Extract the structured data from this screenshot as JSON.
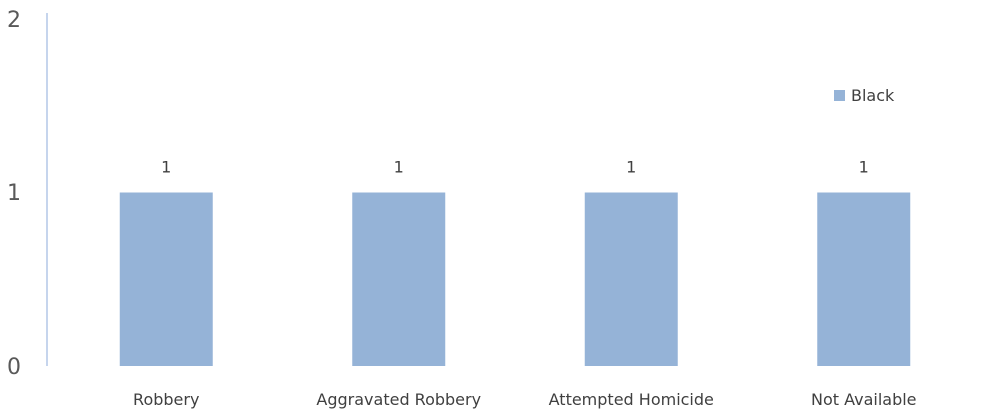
{
  "chart_data": {
    "type": "bar",
    "categories": [
      "Robbery",
      "Aggravated Robbery",
      "Attempted Homicide",
      "Not Available"
    ],
    "series": [
      {
        "name": "Black",
        "values": [
          1,
          1,
          1,
          1
        ],
        "color": "#95b3d7"
      }
    ],
    "data_labels": [
      "1",
      "1",
      "1",
      "1"
    ],
    "y_tick_labels": [
      "0",
      "1",
      "2"
    ],
    "ylim": [
      0,
      2
    ],
    "grid": false,
    "legend_position": "right",
    "axis_color": "#b4c7e7"
  }
}
